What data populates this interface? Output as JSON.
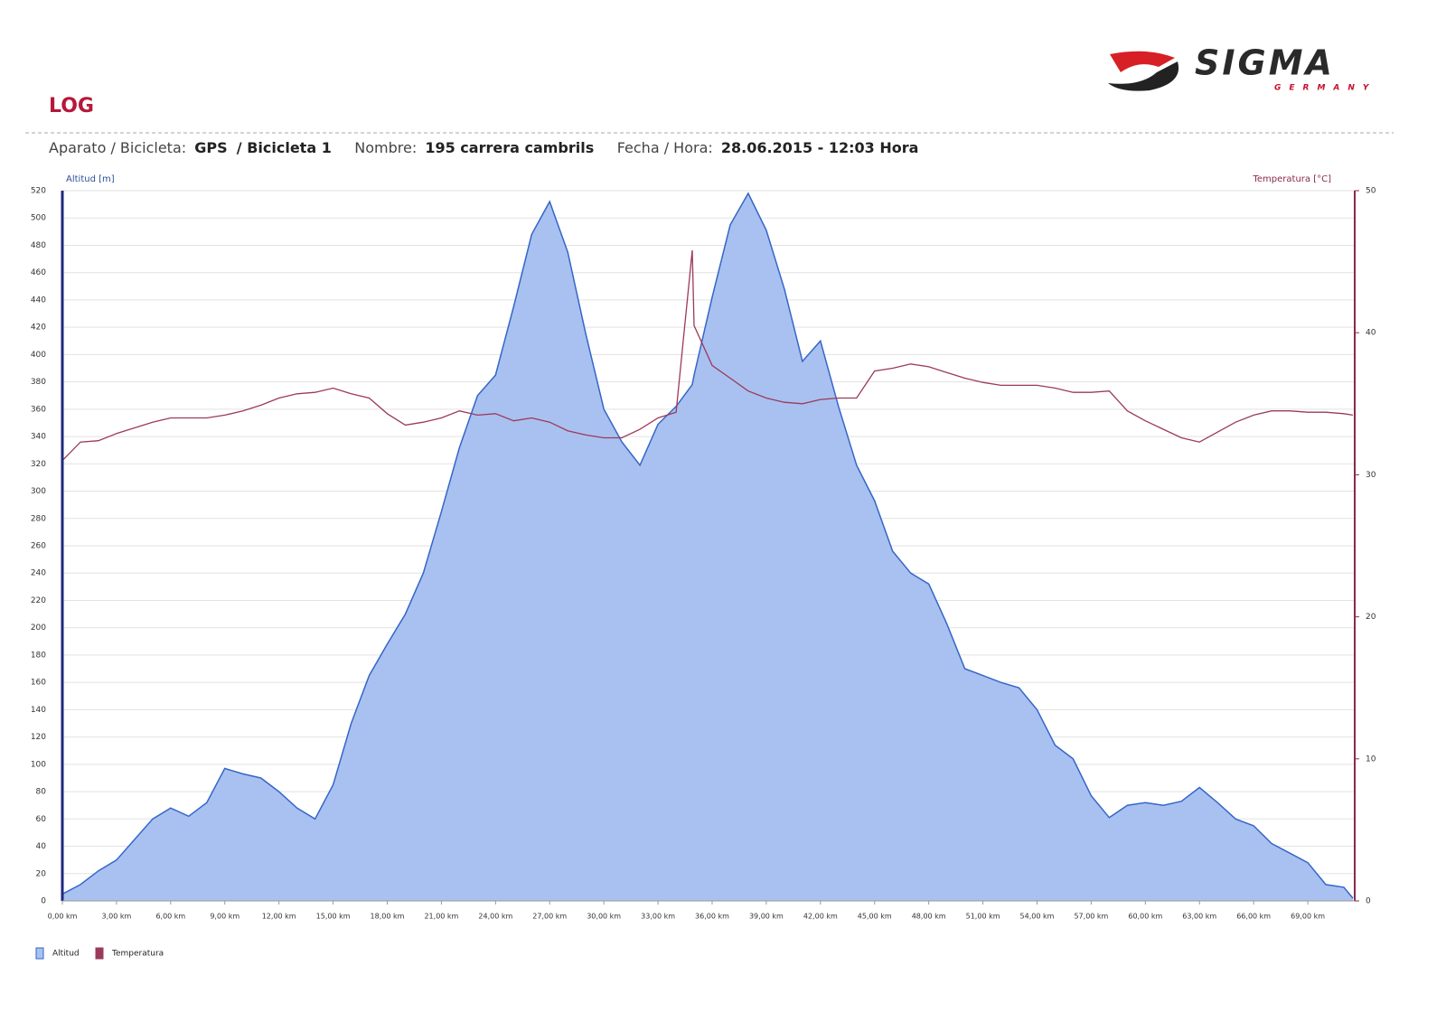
{
  "header": {
    "brand": "SIGMA",
    "tagline": "GERMANY",
    "title": "LOG",
    "device_label": "Aparato / Bicicleta:",
    "device": "GPS",
    "bike": "/ Bicicleta 1",
    "name_label": "Nombre:",
    "name": "195 carrera cambrils",
    "date_label": "Fecha / Hora:",
    "date": "28.06.2015 - 12:03 Hora"
  },
  "chart_data": {
    "type": "area_line",
    "y_label": "Altitud [m]",
    "y2_label": "Temperatura [°C]",
    "x": [
      0,
      1,
      2,
      3,
      4,
      5,
      6,
      7,
      8,
      9,
      10,
      11,
      12,
      13,
      14,
      15,
      16,
      17,
      18,
      19,
      20,
      21,
      22,
      23,
      24,
      25,
      26,
      27,
      28,
      29,
      30,
      31,
      32,
      33,
      34,
      34.9,
      35,
      36,
      37,
      38,
      39,
      40,
      41,
      42,
      43,
      44,
      45,
      46,
      47,
      48,
      49,
      50,
      51,
      52,
      53,
      54,
      55,
      56,
      57,
      58,
      59,
      60,
      61,
      62,
      63,
      64,
      65,
      66,
      67,
      68,
      69,
      70,
      71,
      71.5
    ],
    "series": [
      {
        "name": "Altitud",
        "color": "#a9c1f0",
        "line_color": "#3566c8",
        "values": [
          5,
          12,
          22,
          30,
          45,
          60,
          68,
          62,
          72,
          97,
          93,
          90,
          80,
          68,
          60,
          85,
          130,
          165,
          188,
          210,
          240,
          285,
          332,
          370,
          385,
          435,
          488,
          512,
          475,
          415,
          360,
          336,
          319,
          349,
          362,
          378,
          385,
          442,
          495,
          518,
          491,
          448,
          395,
          410,
          362,
          319,
          293,
          256,
          240,
          232,
          203,
          170,
          165,
          160,
          156,
          140,
          114,
          104,
          77,
          61,
          70,
          72,
          70,
          73,
          83,
          72,
          60,
          55,
          42,
          35,
          28,
          12,
          10,
          2
        ]
      },
      {
        "name": "Temperatura",
        "color": "#9b3a5a",
        "axis": "y2",
        "values": [
          31.0,
          32.3,
          32.4,
          32.9,
          33.3,
          33.7,
          34.0,
          34.0,
          34.0,
          34.2,
          34.5,
          34.9,
          35.4,
          35.7,
          35.8,
          36.1,
          35.7,
          35.4,
          34.3,
          33.5,
          33.7,
          34.0,
          34.5,
          34.2,
          34.3,
          33.8,
          34.0,
          33.7,
          33.1,
          32.8,
          32.6,
          32.6,
          33.2,
          34.0,
          34.4,
          45.8,
          40.5,
          37.7,
          36.8,
          35.9,
          35.4,
          35.1,
          35.0,
          35.3,
          35.4,
          35.4,
          37.3,
          37.5,
          37.8,
          37.6,
          37.2,
          36.8,
          36.5,
          36.3,
          36.3,
          36.3,
          36.1,
          35.8,
          35.8,
          35.9,
          34.5,
          33.8,
          33.2,
          32.6,
          32.3,
          33.0,
          33.7,
          34.2,
          34.5,
          34.5,
          34.4,
          34.4,
          34.3,
          34.2
        ]
      }
    ],
    "xlim": [
      0,
      71.6
    ],
    "xticks": [
      {
        "value": 0,
        "label": "0,00 km"
      },
      {
        "value": 3,
        "label": "3,00 km"
      },
      {
        "value": 6,
        "label": "6,00 km"
      },
      {
        "value": 9,
        "label": "9,00 km"
      },
      {
        "value": 12,
        "label": "12,00 km"
      },
      {
        "value": 15,
        "label": "15,00 km"
      },
      {
        "value": 18,
        "label": "18,00 km"
      },
      {
        "value": 21,
        "label": "21,00 km"
      },
      {
        "value": 24,
        "label": "24,00 km"
      },
      {
        "value": 27,
        "label": "27,00 km"
      },
      {
        "value": 30,
        "label": "30,00 km"
      },
      {
        "value": 33,
        "label": "33,00 km"
      },
      {
        "value": 36,
        "label": "36,00 km"
      },
      {
        "value": 39,
        "label": "39,00 km"
      },
      {
        "value": 42,
        "label": "42,00 km"
      },
      {
        "value": 45,
        "label": "45,00 km"
      },
      {
        "value": 48,
        "label": "48,00 km"
      },
      {
        "value": 51,
        "label": "51,00 km"
      },
      {
        "value": 54,
        "label": "54,00 km"
      },
      {
        "value": 57,
        "label": "57,00 km"
      },
      {
        "value": 60,
        "label": "60,00 km"
      },
      {
        "value": 63,
        "label": "63,00 km"
      },
      {
        "value": 66,
        "label": "66,00 km"
      },
      {
        "value": 69,
        "label": "69,00 km"
      }
    ],
    "ylim": [
      0,
      520
    ],
    "yticks": [
      0,
      20,
      40,
      60,
      80,
      100,
      120,
      140,
      160,
      180,
      200,
      220,
      240,
      260,
      280,
      300,
      320,
      340,
      360,
      380,
      400,
      420,
      440,
      460,
      480,
      500,
      520
    ],
    "y2lim": [
      0,
      50
    ],
    "y2ticks": [
      0,
      10,
      20,
      30,
      40,
      50
    ],
    "grid": true
  }
}
